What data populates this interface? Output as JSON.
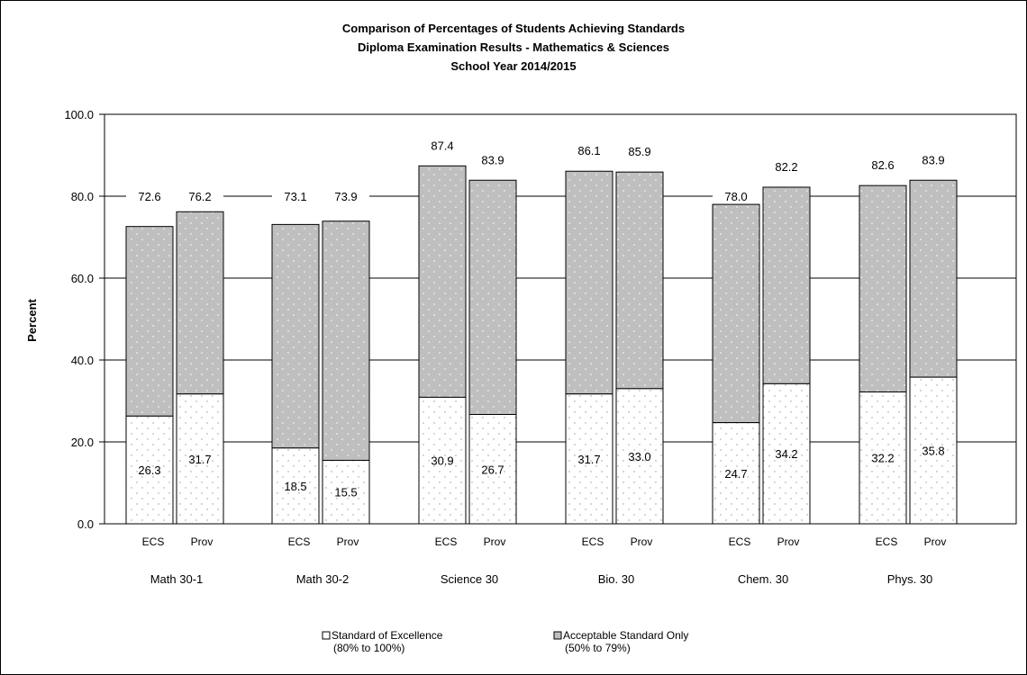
{
  "chart_data": {
    "type": "bar",
    "stacked": true,
    "title": [
      "Comparison of Percentages of Students Achieving Standards",
      "Diploma Examination Results - Mathematics & Sciences",
      "School Year 2014/2015"
    ],
    "ylabel": "Percent",
    "ylim": [
      0,
      100
    ],
    "yticks": [
      "0.0",
      "20.0",
      "40.0",
      "60.0",
      "80.0",
      "100.0"
    ],
    "ytick_values": [
      0,
      20,
      40,
      60,
      80,
      100
    ],
    "grid": true,
    "groups": [
      "Math 30-1",
      "Math 30-2",
      "Science 30",
      "Bio. 30",
      "Chem. 30",
      "Phys. 30"
    ],
    "sub_categories": [
      "ECS",
      "Prov"
    ],
    "series": [
      {
        "name": "Standard of Excellence",
        "name_line2": "(80% to 100%)",
        "color": "#ffffff",
        "values": [
          [
            26.3,
            31.7
          ],
          [
            18.5,
            15.5
          ],
          [
            30.9,
            26.7
          ],
          [
            31.7,
            33.0
          ],
          [
            24.7,
            34.2
          ],
          [
            32.2,
            35.8
          ]
        ],
        "labels": [
          [
            "26.3",
            "31.7"
          ],
          [
            "18.5",
            "15.5"
          ],
          [
            "30.9",
            "26.7"
          ],
          [
            "31.7",
            "33.0"
          ],
          [
            "24.7",
            "34.2"
          ],
          [
            "32.2",
            "35.8"
          ]
        ]
      },
      {
        "name": "Acceptable Standard Only",
        "name_line2": "(50% to 79%)",
        "color": "#bfbfbf",
        "totals": [
          [
            72.6,
            76.2
          ],
          [
            73.1,
            73.9
          ],
          [
            87.4,
            83.9
          ],
          [
            86.1,
            85.9
          ],
          [
            78.0,
            82.2
          ],
          [
            82.6,
            83.9
          ]
        ],
        "total_labels": [
          [
            "72.6",
            "76.2"
          ],
          [
            "73.1",
            "73.9"
          ],
          [
            "87.4",
            "83.9"
          ],
          [
            "86.1",
            "85.9"
          ],
          [
            "78.0",
            "82.2"
          ],
          [
            "82.6",
            "83.9"
          ]
        ]
      }
    ],
    "legend_position": "bottom"
  }
}
